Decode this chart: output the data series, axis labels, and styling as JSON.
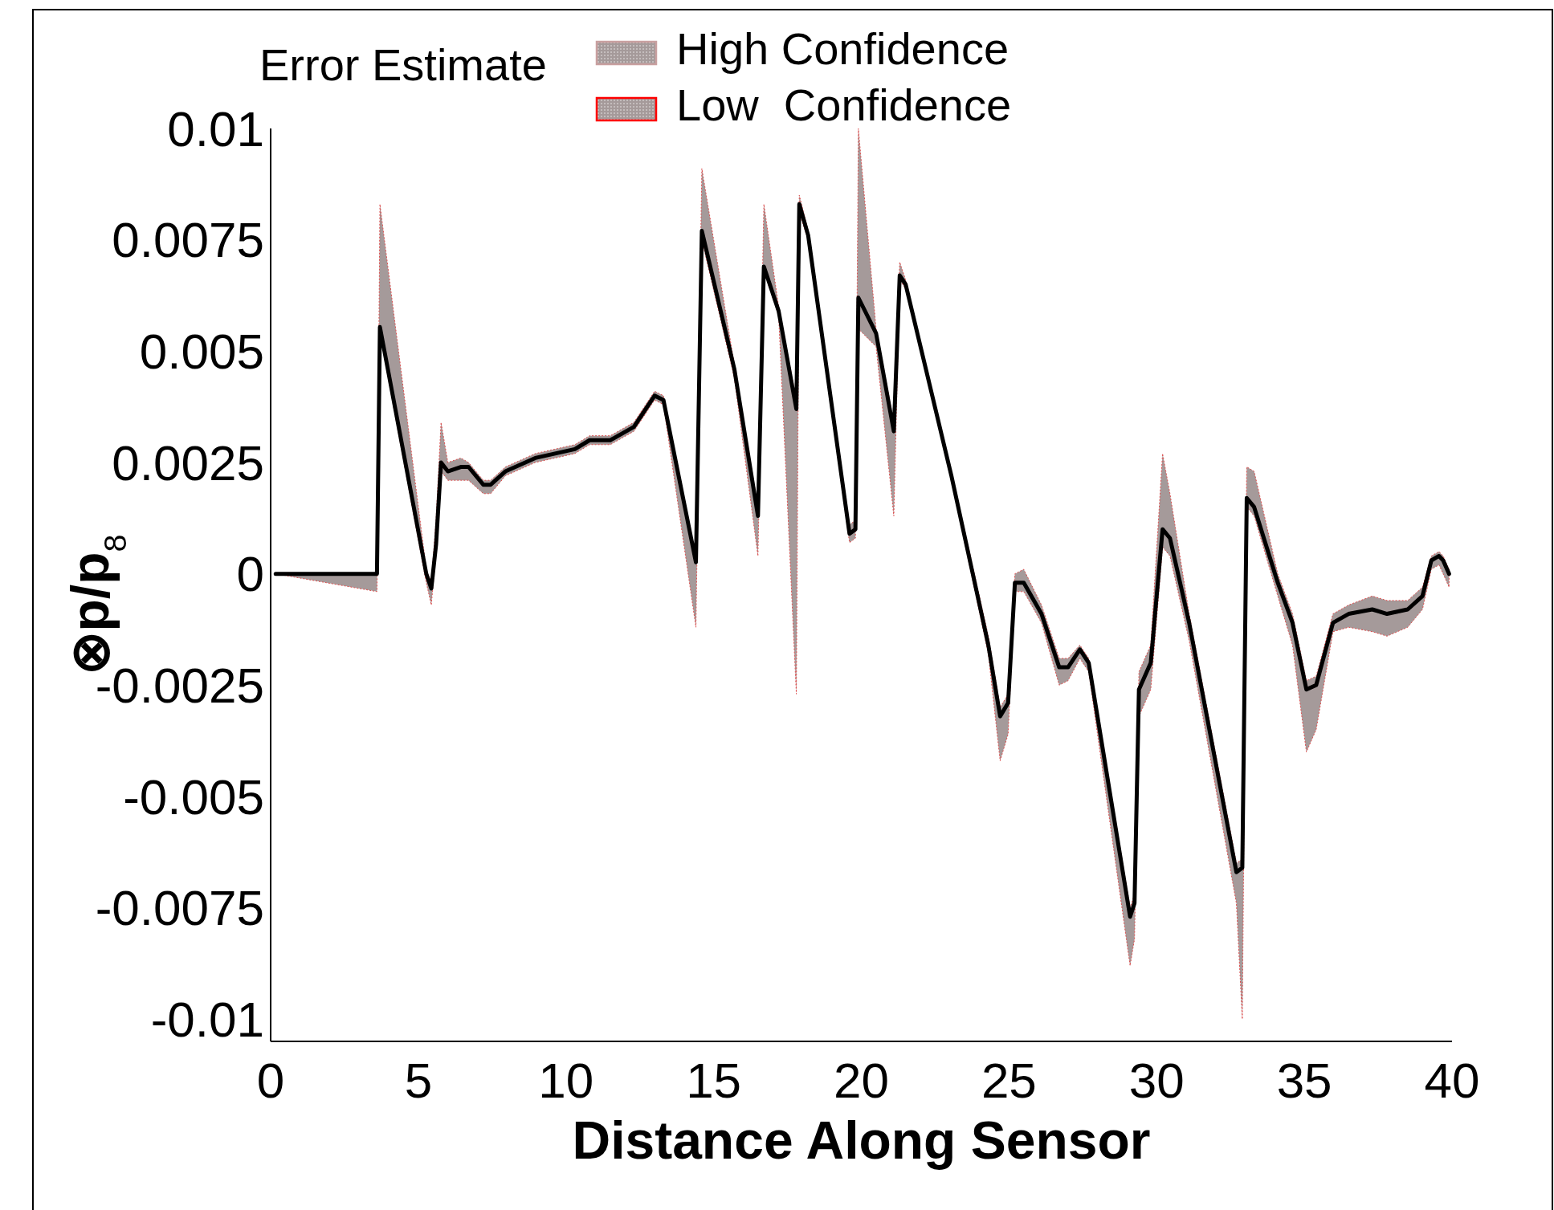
{
  "chart_data": {
    "type": "line",
    "xlabel": "Distance Along Sensor",
    "ylabel": "⊗p/p$_{8}$",
    "legend_title": "Error Estimate",
    "annotations": [
      "High Confidence",
      "Low  Confidence"
    ],
    "xlim": [
      0,
      40
    ],
    "ylim": [
      -0.0105,
      0.01
    ],
    "xticks": [
      0,
      5,
      10,
      15,
      20,
      25,
      30,
      35,
      40
    ],
    "yticks": [
      -0.01,
      -0.0075,
      -0.005,
      -0.0025,
      0,
      0.0025,
      0.005,
      0.0075,
      0.01
    ],
    "x": [
      0.17,
      3.6,
      3.7,
      5.27,
      5.44,
      5.6,
      5.77,
      6.0,
      6.44,
      6.7,
      7.2,
      7.45,
      7.95,
      8.96,
      10.3,
      10.8,
      11.5,
      12.3,
      13.0,
      13.3,
      14.4,
      14.6,
      15.7,
      16.5,
      16.7,
      17.2,
      17.8,
      17.9,
      18.2,
      19.6,
      19.8,
      19.9,
      20.5,
      21.1,
      21.3,
      21.5,
      23.05,
      24.3,
      24.7,
      24.97,
      25.2,
      25.5,
      26.1,
      26.7,
      27.0,
      27.4,
      27.7,
      29.1,
      29.25,
      29.4,
      29.8,
      30.2,
      30.45,
      31.1,
      32.7,
      32.9,
      33.05,
      33.3,
      34.1,
      34.6,
      35.07,
      35.4,
      35.97,
      36.5,
      37.3,
      37.8,
      38.5,
      39.0,
      39.3,
      39.56,
      39.7,
      39.9
    ],
    "series": [
      {
        "color": "#000000",
        "values": [
          0,
          0,
          0.00554,
          0,
          -0.00033,
          0.00065,
          0.0025,
          0.0023,
          0.0024,
          0.0024,
          0.002,
          0.002,
          0.0023,
          0.0026,
          0.0028,
          0.003,
          0.003,
          0.0033,
          0.004,
          0.0039,
          0.00026,
          0.0077,
          0.0046,
          0.0013,
          0.0069,
          0.0059,
          0.0037,
          0.0083,
          0.0076,
          0.0009,
          0.001,
          0.0062,
          0.0054,
          0.0032,
          0.0067,
          0.0065,
          0.0022,
          -0.0016,
          -0.0032,
          -0.0029,
          -0.0002,
          -0.0002,
          -0.0009,
          -0.0021,
          -0.0021,
          -0.0017,
          -0.002,
          -0.0077,
          -0.0074,
          -0.0026,
          -0.002,
          0.001,
          0.0008,
          -0.0011,
          -0.0067,
          -0.0066,
          0.0017,
          0.0015,
          -0.0002,
          -0.0011,
          -0.0026,
          -0.0025,
          -0.0011,
          -0.0009,
          -0.0008,
          -0.0009,
          -0.0008,
          -0.0005,
          0.0003,
          0.0004,
          0.0003,
          0
        ],
        "lower": [
          0,
          -0.0004,
          0.0054,
          -0.0002,
          -0.0007,
          0.0005,
          0.0023,
          0.0021,
          0.0021,
          0.0021,
          0.0018,
          0.0018,
          0.0022,
          0.0025,
          0.0027,
          0.0029,
          0.0029,
          0.0032,
          0.0039,
          0.0038,
          -0.0012,
          0.0075,
          0.0044,
          0.0004,
          0.0068,
          0.0058,
          -0.0027,
          0.0081,
          0.0075,
          0.0007,
          0.0008,
          0.0055,
          0.0051,
          0.0013,
          0.0066,
          0.0064,
          0.0021,
          -0.0018,
          -0.0042,
          -0.0036,
          -0.0004,
          -0.0004,
          -0.0011,
          -0.0025,
          -0.0024,
          -0.0019,
          -0.0022,
          -0.0088,
          -0.0082,
          -0.0032,
          -0.0026,
          0.0006,
          0.0004,
          -0.0015,
          -0.0074,
          -0.01,
          0.0015,
          0.0013,
          -0.0005,
          -0.0016,
          -0.004,
          -0.0035,
          -0.0013,
          -0.0012,
          -0.0013,
          -0.0014,
          -0.0012,
          -0.0008,
          0.0001,
          0.0002,
          0,
          -0.0003
        ],
        "upper": [
          0,
          0,
          0.0083,
          0.0001,
          -0.0002,
          0.0012,
          0.0034,
          0.0025,
          0.0026,
          0.0025,
          0.0021,
          0.0021,
          0.0024,
          0.0027,
          0.0029,
          0.0031,
          0.0031,
          0.0034,
          0.0041,
          0.004,
          0.0004,
          0.0091,
          0.0047,
          0.0015,
          0.0083,
          0.006,
          0.0039,
          0.0085,
          0.0077,
          0.0011,
          0.0012,
          0.01,
          0.0055,
          0.0034,
          0.007,
          0.0066,
          0.0023,
          -0.0014,
          -0.003,
          -0.0027,
          0,
          0.0001,
          -0.0007,
          -0.0019,
          -0.0019,
          -0.0016,
          -0.0019,
          -0.0075,
          -0.0072,
          -0.0022,
          -0.0016,
          0.0027,
          0.0018,
          -0.0009,
          -0.0065,
          -0.0064,
          0.0024,
          0.0023,
          0,
          -0.0009,
          -0.0024,
          -0.0023,
          -0.0009,
          -0.0007,
          -0.0005,
          -0.0006,
          -0.0006,
          -0.0003,
          0.0004,
          0.0005,
          0.0004,
          0.0001
        ]
      }
    ]
  }
}
